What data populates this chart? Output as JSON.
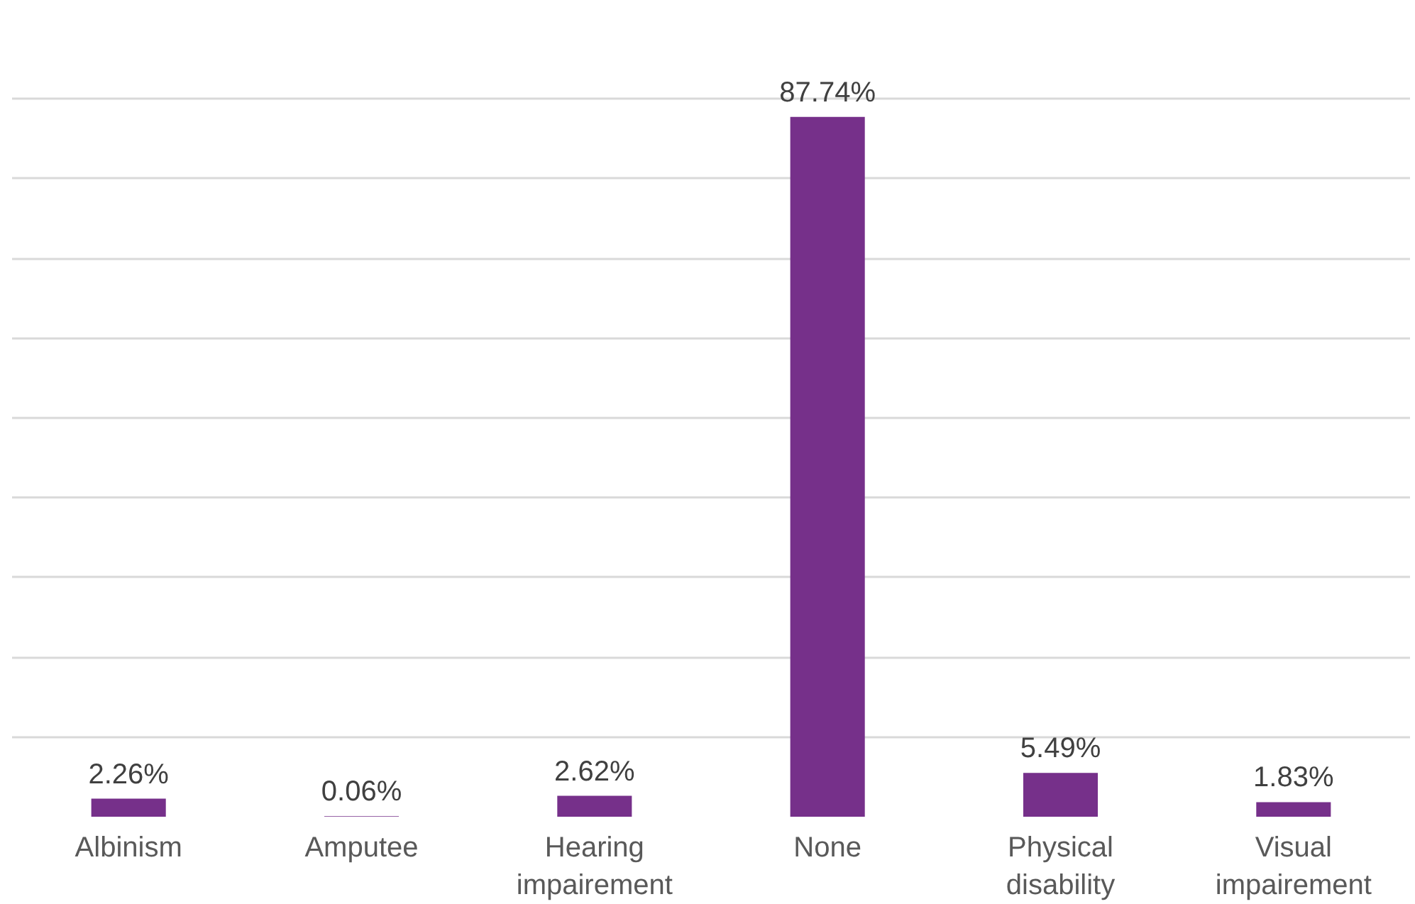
{
  "chart_data": {
    "type": "bar",
    "categories": [
      "Albinism",
      "Amputee",
      "Hearing impairement",
      "None",
      "Physical disability",
      "Visual impairement"
    ],
    "values": [
      2.26,
      0.06,
      2.62,
      87.74,
      5.49,
      1.83
    ],
    "color": "#76308a",
    "data_labels": true,
    "value_labels": [
      "2.26%",
      "0.06%",
      "2.62%",
      "87.74%",
      "5.49%",
      "1.83%"
    ],
    "grid": "y",
    "tick_labels": "x"
  }
}
